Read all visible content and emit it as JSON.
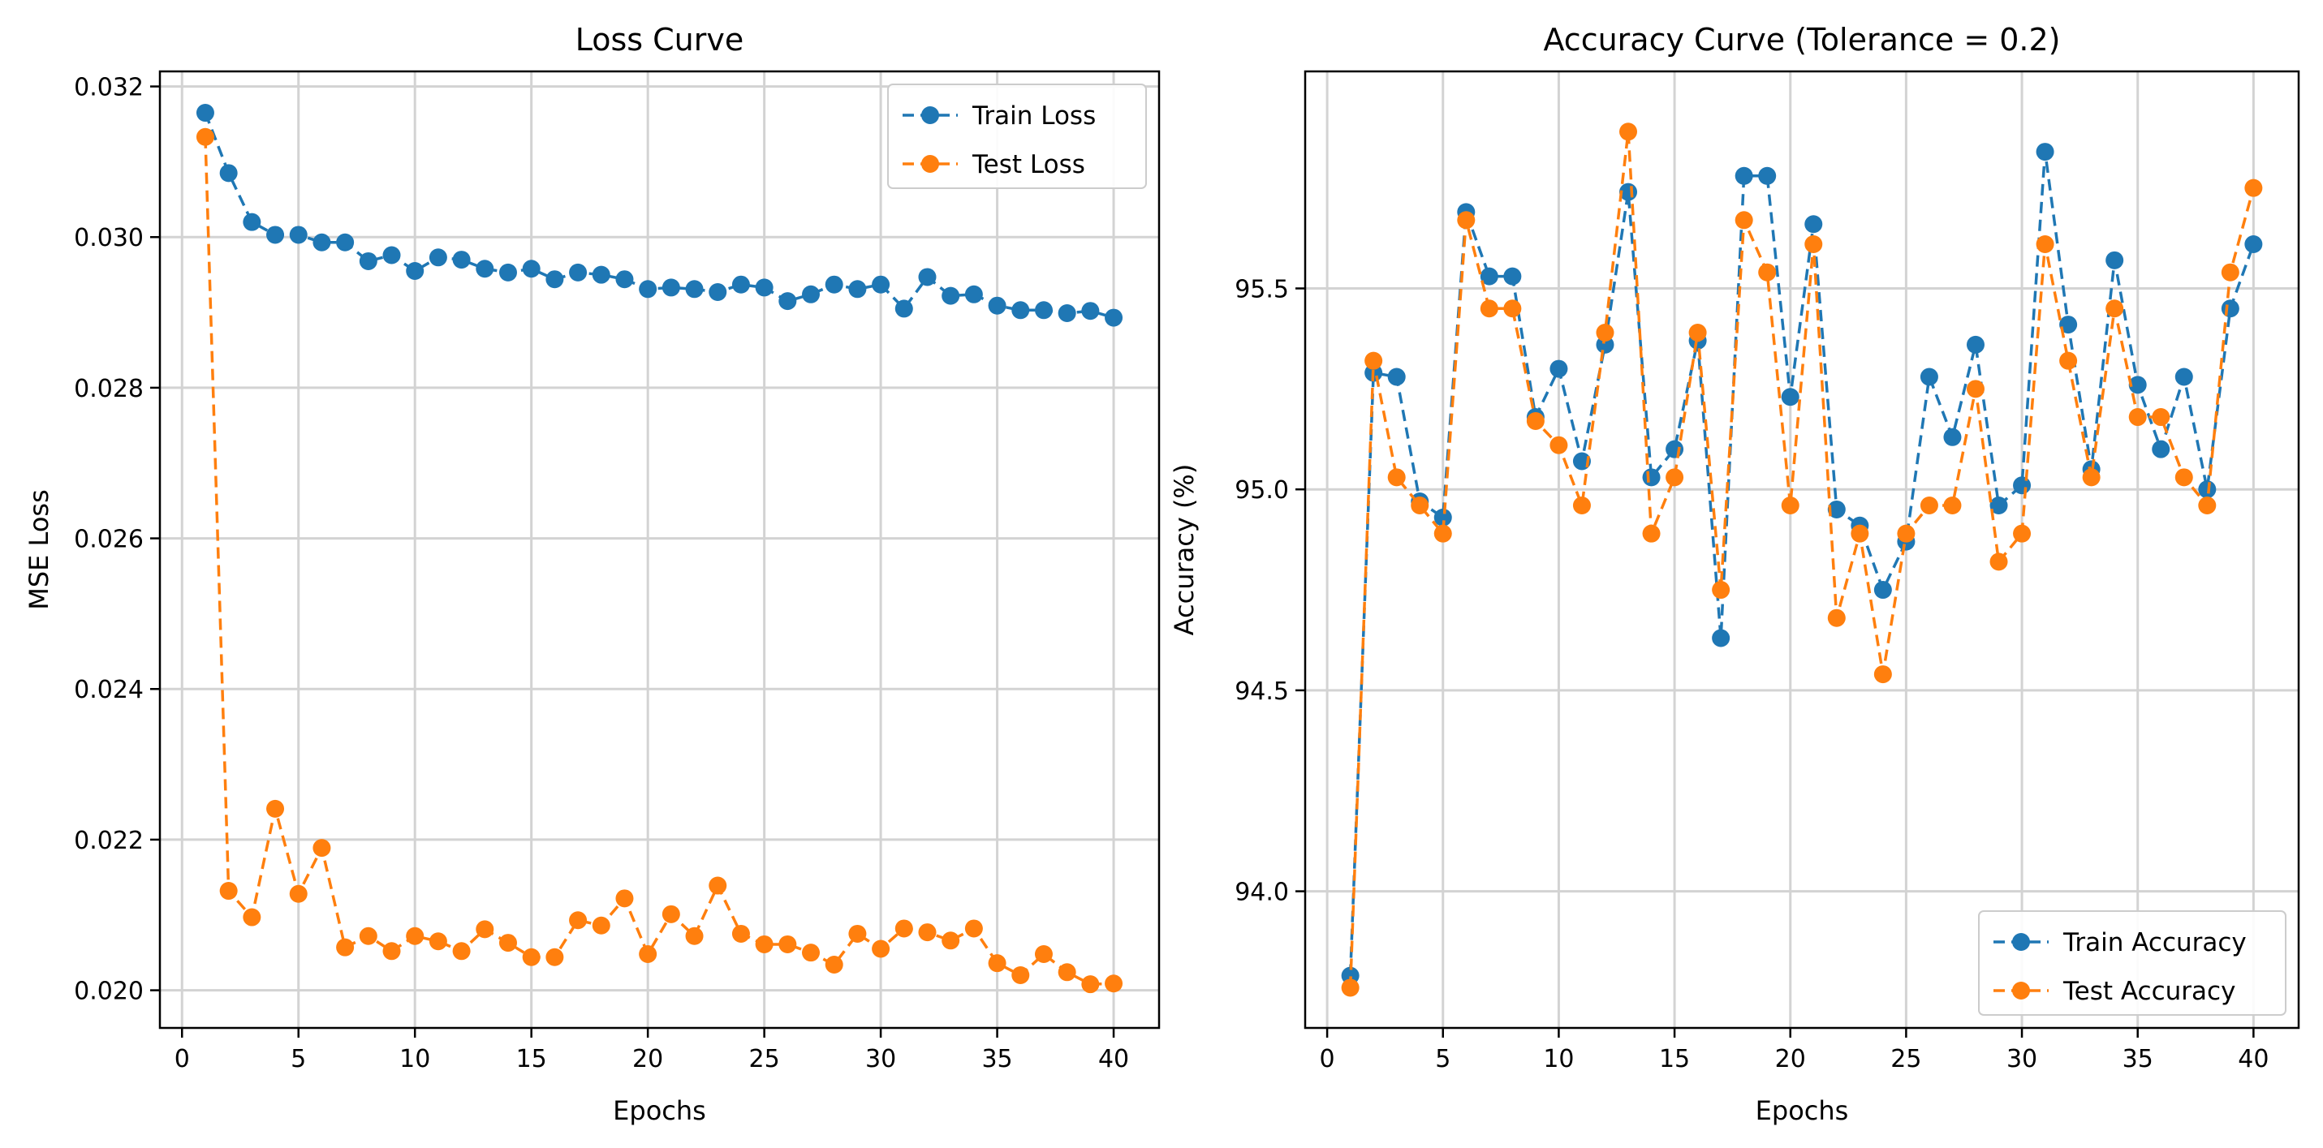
{
  "colors": {
    "train": "#1f77b4",
    "test": "#ff7f0e"
  },
  "chart_data": [
    {
      "type": "line",
      "title": "Loss Curve",
      "xlabel": "Epochs",
      "ylabel": "MSE Loss",
      "xlim": [
        -0.95,
        41.95
      ],
      "ylim": [
        0.0195,
        0.0322
      ],
      "xticks": [
        0,
        5,
        10,
        15,
        20,
        25,
        30,
        35,
        40
      ],
      "xtick_labels": [
        "0",
        "5",
        "10",
        "15",
        "20",
        "25",
        "30",
        "35",
        "40"
      ],
      "yticks": [
        0.02,
        0.022,
        0.024,
        0.026,
        0.028,
        0.03,
        0.032
      ],
      "ytick_labels": [
        "0.020",
        "0.022",
        "0.024",
        "0.026",
        "0.028",
        "0.030",
        "0.032"
      ],
      "grid": true,
      "legend_position": "top-right",
      "x": [
        1,
        2,
        3,
        4,
        5,
        6,
        7,
        8,
        9,
        10,
        11,
        12,
        13,
        14,
        15,
        16,
        17,
        18,
        19,
        20,
        21,
        22,
        23,
        24,
        25,
        26,
        27,
        28,
        29,
        30,
        31,
        32,
        33,
        34,
        35,
        36,
        37,
        38,
        39,
        40
      ],
      "series": [
        {
          "name": "Train Loss",
          "color_key": "train",
          "values": [
            0.03165,
            0.03085,
            0.0302,
            0.03003,
            0.03003,
            0.02993,
            0.02993,
            0.02968,
            0.02976,
            0.02955,
            0.02973,
            0.0297,
            0.02958,
            0.02953,
            0.02958,
            0.02944,
            0.02953,
            0.0295,
            0.02944,
            0.02931,
            0.02933,
            0.02931,
            0.02927,
            0.02937,
            0.02933,
            0.02915,
            0.02924,
            0.02937,
            0.02931,
            0.02937,
            0.02905,
            0.02947,
            0.02922,
            0.02924,
            0.02909,
            0.02903,
            0.02903,
            0.02899,
            0.02902,
            0.02893
          ]
        },
        {
          "name": "Test Loss",
          "color_key": "test",
          "values": [
            0.03133,
            0.02132,
            0.02097,
            0.02241,
            0.02128,
            0.02189,
            0.02057,
            0.02072,
            0.02052,
            0.02072,
            0.02065,
            0.02052,
            0.02081,
            0.02063,
            0.02044,
            0.02044,
            0.02093,
            0.02086,
            0.02122,
            0.02048,
            0.02101,
            0.02072,
            0.02139,
            0.02075,
            0.02061,
            0.02061,
            0.0205,
            0.02034,
            0.02075,
            0.02055,
            0.02082,
            0.02077,
            0.02066,
            0.02082,
            0.02036,
            0.0202,
            0.02048,
            0.02024,
            0.02008,
            0.02009
          ]
        }
      ]
    },
    {
      "type": "line",
      "title": "Accuracy Curve (Tolerance = 0.2)",
      "xlabel": "Epochs",
      "ylabel": "Accuracy (%)",
      "xlim": [
        -0.95,
        41.95
      ],
      "ylim": [
        93.66,
        96.04
      ],
      "xticks": [
        0,
        5,
        10,
        15,
        20,
        25,
        30,
        35,
        40
      ],
      "xtick_labels": [
        "0",
        "5",
        "10",
        "15",
        "20",
        "25",
        "30",
        "35",
        "40"
      ],
      "yticks": [
        94.0,
        94.5,
        95.0,
        95.5
      ],
      "ytick_labels": [
        "94.0",
        "94.5",
        "95.0",
        "95.5"
      ],
      "grid": true,
      "legend_position": "bottom-right",
      "x": [
        1,
        2,
        3,
        4,
        5,
        6,
        7,
        8,
        9,
        10,
        11,
        12,
        13,
        14,
        15,
        16,
        17,
        18,
        19,
        20,
        21,
        22,
        23,
        24,
        25,
        26,
        27,
        28,
        29,
        30,
        31,
        32,
        33,
        34,
        35,
        36,
        37,
        38,
        39,
        40
      ],
      "series": [
        {
          "name": "Train Accuracy",
          "color_key": "train",
          "values": [
            93.79,
            95.29,
            95.28,
            94.97,
            94.93,
            95.69,
            95.53,
            95.53,
            95.18,
            95.3,
            95.07,
            95.36,
            95.74,
            95.03,
            95.1,
            95.37,
            94.63,
            95.78,
            95.78,
            95.23,
            95.66,
            94.95,
            94.91,
            94.75,
            94.87,
            95.28,
            95.13,
            95.36,
            94.96,
            95.01,
            95.84,
            95.41,
            95.05,
            95.57,
            95.26,
            95.1,
            95.28,
            95.0,
            95.45,
            95.61
          ]
        },
        {
          "name": "Test Accuracy",
          "color_key": "test",
          "values": [
            93.76,
            95.32,
            95.03,
            94.96,
            94.89,
            95.67,
            95.45,
            95.45,
            95.17,
            95.11,
            94.96,
            95.39,
            95.89,
            94.89,
            95.03,
            95.39,
            94.75,
            95.67,
            95.54,
            94.96,
            95.61,
            94.68,
            94.89,
            94.54,
            94.89,
            94.96,
            94.96,
            95.25,
            94.82,
            94.89,
            95.61,
            95.32,
            95.03,
            95.45,
            95.18,
            95.18,
            95.03,
            94.96,
            95.54,
            95.75
          ]
        }
      ]
    }
  ]
}
